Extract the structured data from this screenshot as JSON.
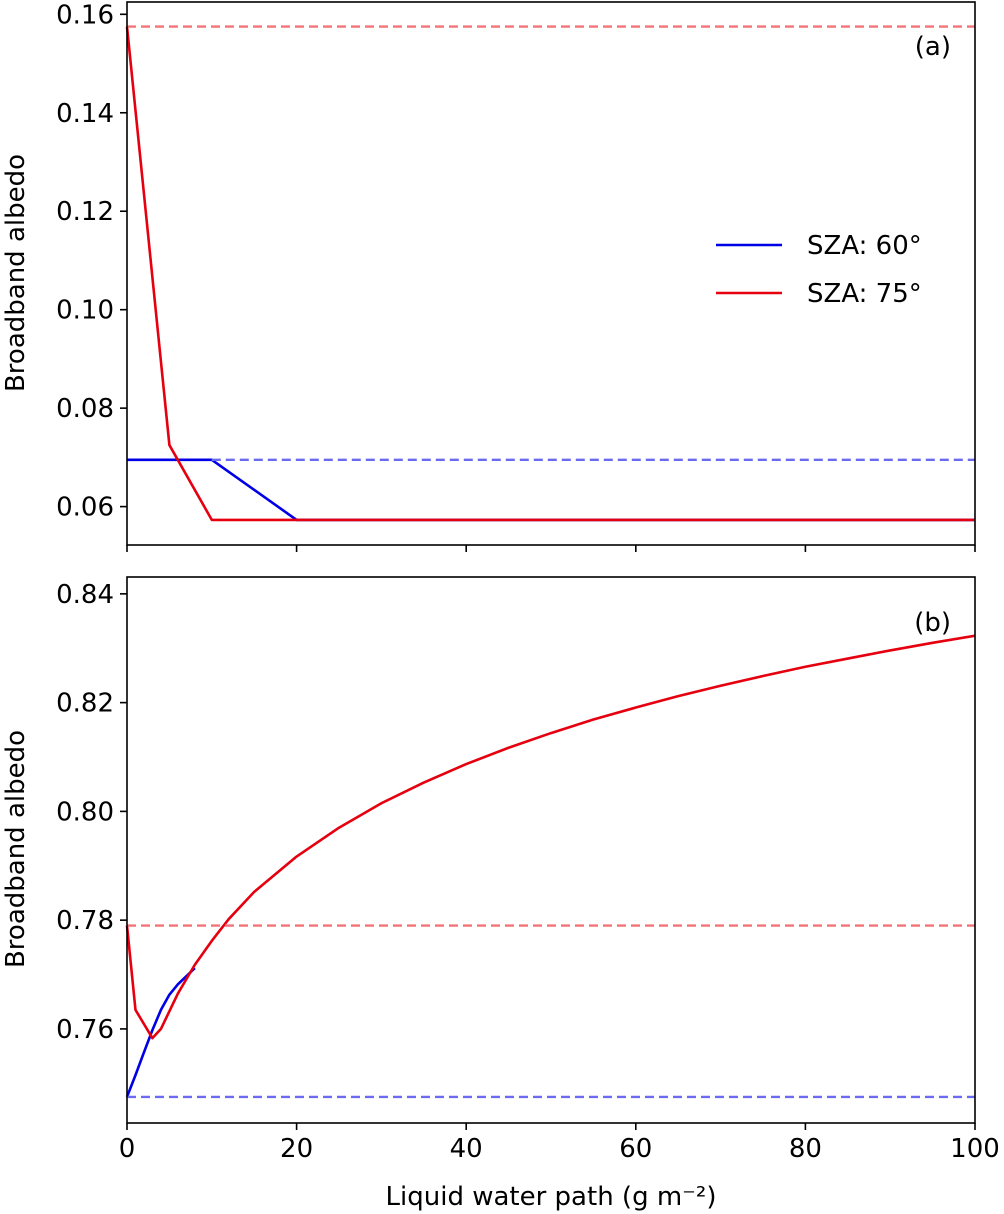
{
  "colors": {
    "szA60": "#0000e6",
    "szA75": "#e6000f",
    "szA60_dashed": "#6b6bf2",
    "szA75_dashed": "#f27478"
  },
  "chart_data": [
    {
      "panel": "(a)",
      "type": "line",
      "xlabel": "",
      "ylabel": "Broadband albedo",
      "xlim": [
        0,
        100
      ],
      "ylim": [
        0.0522,
        0.1625
      ],
      "xticks": [
        0,
        20,
        40,
        60,
        80,
        100
      ],
      "xtick_labels_visible": false,
      "yticks": [
        0.06,
        0.08,
        0.1,
        0.12,
        0.14,
        0.16
      ],
      "ytick_labels": [
        "0.06",
        "0.08",
        "0.10",
        "0.12",
        "0.14",
        "0.16"
      ],
      "legend": {
        "location": "center-right",
        "entries": [
          "SZA: 60°",
          "SZA: 75°"
        ]
      },
      "series": [
        {
          "name": "SZA: 60°",
          "style": "solid",
          "color_key": "szA60",
          "x": [
            0,
            10,
            20,
            100
          ],
          "y": [
            0.0695,
            0.0695,
            0.0573,
            0.0573
          ]
        },
        {
          "name": "SZA: 75°",
          "style": "solid",
          "color_key": "szA75",
          "x": [
            0,
            5,
            10,
            100
          ],
          "y": [
            0.1575,
            0.0725,
            0.0573,
            0.0573
          ]
        },
        {
          "style": "dashed",
          "color_key": "szA60_dashed",
          "x": [
            10,
            100
          ],
          "y": [
            0.0695,
            0.0695
          ]
        },
        {
          "style": "dashed",
          "color_key": "szA75_dashed",
          "x": [
            0,
            100
          ],
          "y": [
            0.1575,
            0.1575
          ]
        }
      ]
    },
    {
      "panel": "(b)",
      "type": "line",
      "xlabel": "Liquid water path (g m⁻²)",
      "ylabel": "Broadband albedo",
      "xlim": [
        0,
        100
      ],
      "ylim": [
        0.7427,
        0.8431
      ],
      "xticks": [
        0,
        20,
        40,
        60,
        80,
        100
      ],
      "xtick_labels": [
        "0",
        "20",
        "40",
        "60",
        "80",
        "100"
      ],
      "yticks": [
        0.76,
        0.78,
        0.8,
        0.82,
        0.84
      ],
      "ytick_labels": [
        "0.76",
        "0.78",
        "0.80",
        "0.82",
        "0.84"
      ],
      "series": [
        {
          "name": "SZA: 60°",
          "style": "solid",
          "color_key": "szA60",
          "x": [
            0,
            1,
            2,
            3,
            4,
            5,
            6,
            7,
            8
          ],
          "y": [
            0.7475,
            0.7515,
            0.7557,
            0.7598,
            0.7635,
            0.7663,
            0.7682,
            0.7697,
            0.7712
          ]
        },
        {
          "name": "SZA: 75°",
          "style": "solid",
          "color_key": "szA75",
          "x": [
            0,
            1,
            3,
            4,
            6,
            8,
            10,
            12,
            15,
            20,
            25,
            30,
            35,
            40,
            45,
            50,
            55,
            60,
            65,
            70,
            75,
            80,
            85,
            90,
            95,
            100
          ],
          "y": [
            0.779,
            0.7635,
            0.7583,
            0.76,
            0.7665,
            0.7718,
            0.7762,
            0.7802,
            0.7852,
            0.7917,
            0.797,
            0.8015,
            0.8053,
            0.8087,
            0.8117,
            0.8144,
            0.8169,
            0.8191,
            0.8212,
            0.8231,
            0.8249,
            0.8266,
            0.8281,
            0.8296,
            0.831,
            0.8323
          ]
        },
        {
          "style": "dashed",
          "color_key": "szA75_dashed",
          "x": [
            0,
            100
          ],
          "y": [
            0.779,
            0.779
          ]
        },
        {
          "style": "dashed",
          "color_key": "szA60_dashed",
          "x": [
            0,
            100
          ],
          "y": [
            0.7475,
            0.7475
          ]
        }
      ]
    }
  ]
}
